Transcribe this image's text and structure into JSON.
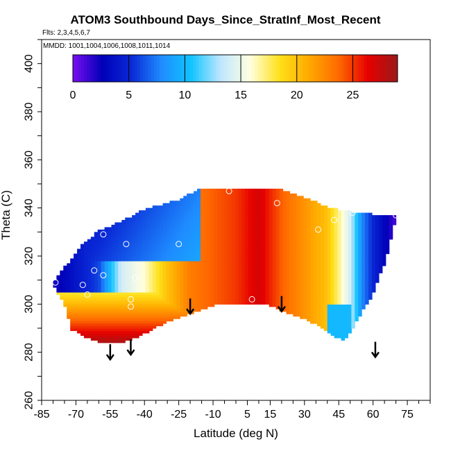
{
  "title": "ATOM3 Southbound Days_Since_StratInf_Most_Recent",
  "flights_note": "Flts: 2,3,4,5,6,7",
  "mmdd_note": "MMDD: 1001,1004,1006,1008,1011,1014",
  "chart_data": {
    "type": "heatmap",
    "xlabel": "Latitude (deg N)",
    "ylabel": "Theta (C)",
    "xlim": [
      -85,
      85
    ],
    "ylim": [
      260,
      410
    ],
    "x_ticks": [
      -85,
      -70,
      -55,
      -40,
      -25,
      -10,
      5,
      15,
      30,
      45,
      60,
      75
    ],
    "y_ticks": [
      260,
      280,
      300,
      320,
      340,
      360,
      380,
      400
    ],
    "colorbar": {
      "min": 0,
      "max": 29,
      "ticks": [
        0,
        5,
        10,
        15,
        20,
        25
      ],
      "colors": [
        "#7a0ef0",
        "#0000b8",
        "#0a2ad6",
        "#1f8cff",
        "#11c4ff",
        "#bfe6ff",
        "#ffffe0",
        "#ffe11a",
        "#ffaa00",
        "#ff6a00",
        "#e60000",
        "#9a1a1a"
      ]
    },
    "field": {
      "description": "Days since stratospheric influence, most recent",
      "lat_range": [
        -80,
        70
      ],
      "bottom_boundary": [
        [
          -80,
          309
        ],
        [
          -75,
          300
        ],
        [
          -72,
          290
        ],
        [
          -66,
          287
        ],
        [
          -60,
          285
        ],
        [
          -53,
          284
        ],
        [
          -45,
          286
        ],
        [
          -30,
          293
        ],
        [
          -18,
          297
        ],
        [
          -10,
          300
        ],
        [
          5,
          300
        ],
        [
          15,
          300
        ],
        [
          22,
          297
        ],
        [
          28,
          295
        ],
        [
          35,
          292
        ],
        [
          42,
          288
        ],
        [
          47,
          285
        ],
        [
          52,
          292
        ],
        [
          60,
          305
        ],
        [
          66,
          320
        ],
        [
          70,
          337
        ]
      ],
      "top_boundary": [
        [
          -80,
          309
        ],
        [
          -74,
          316
        ],
        [
          -68,
          324
        ],
        [
          -60,
          330
        ],
        [
          -50,
          334
        ],
        [
          -40,
          339
        ],
        [
          -25,
          343
        ],
        [
          -17,
          347
        ],
        [
          -5,
          348
        ],
        [
          8,
          348
        ],
        [
          20,
          347
        ],
        [
          30,
          344
        ],
        [
          40,
          340
        ],
        [
          50,
          338
        ],
        [
          60,
          337
        ],
        [
          70,
          337
        ]
      ]
    },
    "sample_points": [
      {
        "lat": -58,
        "theta": 329
      },
      {
        "lat": -48,
        "theta": 325
      },
      {
        "lat": -25,
        "theta": 325
      },
      {
        "lat": -62,
        "theta": 314
      },
      {
        "lat": -58,
        "theta": 312
      },
      {
        "lat": -44,
        "theta": 311
      },
      {
        "lat": -67,
        "theta": 308
      },
      {
        "lat": -65,
        "theta": 304
      },
      {
        "lat": -46,
        "theta": 302
      },
      {
        "lat": -46,
        "theta": 299
      },
      {
        "lat": -3,
        "theta": 347
      },
      {
        "lat": 18,
        "theta": 342
      },
      {
        "lat": 36,
        "theta": 331
      },
      {
        "lat": 43,
        "theta": 335
      },
      {
        "lat": 51,
        "theta": 338
      },
      {
        "lat": 70,
        "theta": 337
      },
      {
        "lat": 7,
        "theta": 302
      },
      {
        "lat": -79,
        "theta": 309
      }
    ],
    "arrows": [
      {
        "lat": -55,
        "theta": 277
      },
      {
        "lat": -46,
        "theta": 279
      },
      {
        "lat": -20,
        "theta": 296
      },
      {
        "lat": 20,
        "theta": 297
      },
      {
        "lat": 61,
        "theta": 278
      }
    ]
  }
}
